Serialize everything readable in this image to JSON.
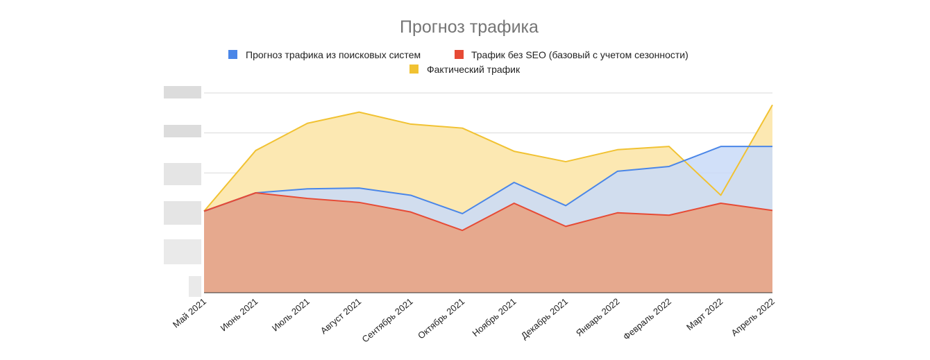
{
  "chart_data": {
    "type": "area",
    "title": "Прогноз трафика",
    "categories": [
      "Май 2021",
      "Июнь 2021",
      "Июль 2021",
      "Август 2021",
      "Сентябрь 2021",
      "Октябрь 2021",
      "Ноябрь 2021",
      "Декабрь 2021",
      "Январь 2022",
      "Февраль 2022",
      "Март 2022",
      "Апрель 2022"
    ],
    "series": [
      {
        "name": "Прогноз трафика из поисковых систем",
        "color": "#4a86e8",
        "fill": "#c9daf8",
        "values": [
          102,
          125,
          130,
          131,
          122,
          99,
          138,
          109,
          152,
          158,
          183,
          183
        ]
      },
      {
        "name": "Трафик без SEO (базовый с учетом сезонности)",
        "color": "#e64a35",
        "fill": "#e6a98e",
        "values": [
          102,
          125,
          118,
          113,
          101,
          78,
          112,
          83,
          100,
          97,
          112,
          103
        ]
      },
      {
        "name": "Фактический трафик",
        "color": "#f1c232",
        "fill": "#fce8b2",
        "values": [
          102,
          178,
          212,
          226,
          211,
          206,
          177,
          164,
          179,
          183,
          122,
          235
        ]
      }
    ],
    "ylim": [
      0,
      250
    ],
    "y_tick_labels_visible": false,
    "grid": true,
    "legend_position": "top"
  }
}
